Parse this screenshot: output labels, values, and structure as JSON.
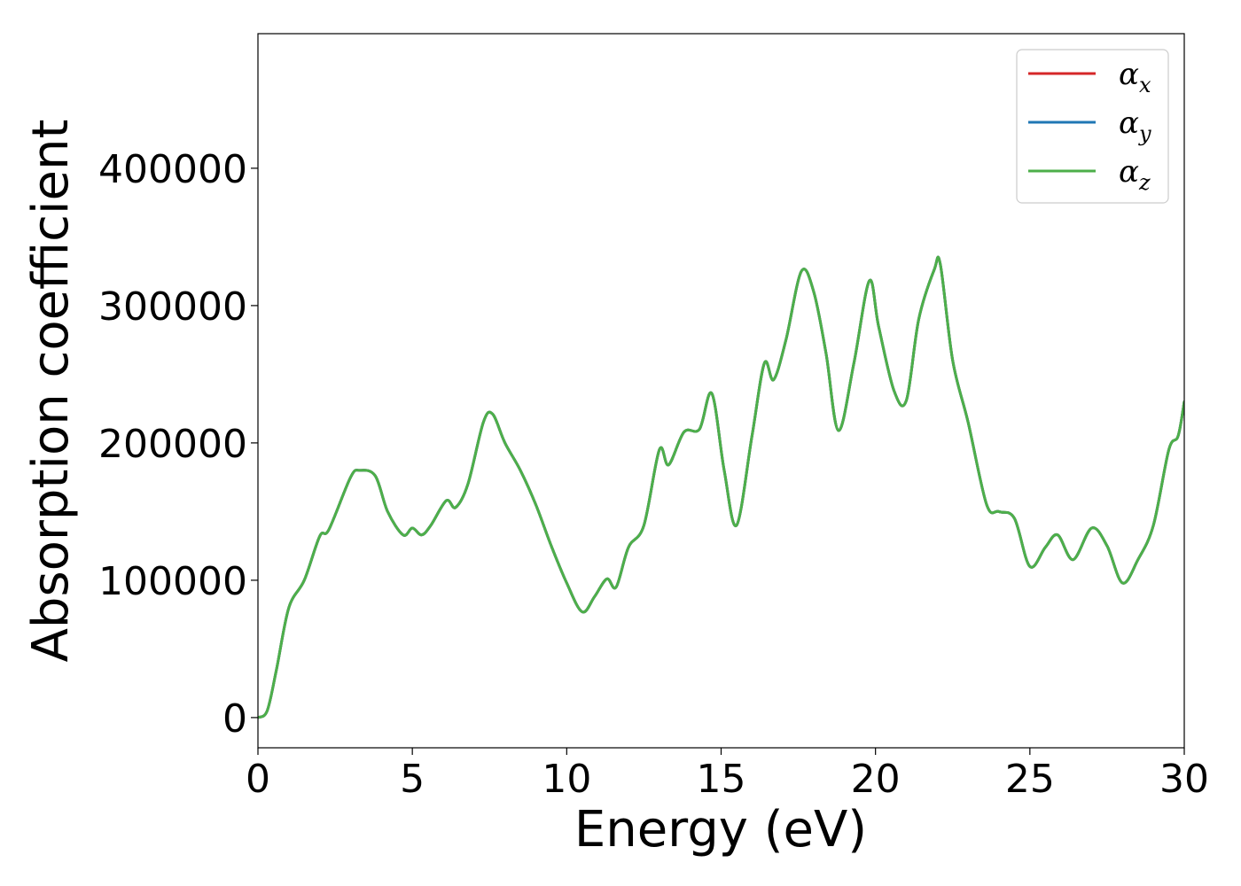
{
  "chart_data": {
    "type": "line",
    "title": "",
    "xlabel": "Energy (eV)",
    "ylabel": "Absorption coefficient",
    "xlim": [
      0,
      30
    ],
    "ylim": [
      -22000,
      498000
    ],
    "xticks": [
      0,
      5,
      10,
      15,
      20,
      25,
      30
    ],
    "yticks": [
      0,
      100000,
      200000,
      300000,
      400000
    ],
    "xtick_labels": [
      "0",
      "5",
      "10",
      "15",
      "20",
      "25",
      "30"
    ],
    "ytick_labels": [
      "0",
      "100000",
      "200000",
      "300000",
      "400000"
    ],
    "grid": false,
    "legend_position": "top-right",
    "x": [
      0,
      0.3,
      0.6,
      1.0,
      1.5,
      2.0,
      2.3,
      3.0,
      3.3,
      3.8,
      4.2,
      4.7,
      5.0,
      5.3,
      5.6,
      6.1,
      6.4,
      6.8,
      7.3,
      7.6,
      8.0,
      8.5,
      9.0,
      9.5,
      10.0,
      10.5,
      10.9,
      11.3,
      11.6,
      12.0,
      12.5,
      13.0,
      13.3,
      13.8,
      14.3,
      14.7,
      15.1,
      15.5,
      16.0,
      16.4,
      16.7,
      17.1,
      17.6,
      18.0,
      18.4,
      18.8,
      19.3,
      19.8,
      20.1,
      20.6,
      21.0,
      21.4,
      21.9,
      22.1,
      22.5,
      23.0,
      23.6,
      24.0,
      24.5,
      25.0,
      25.5,
      25.9,
      26.4,
      27.0,
      27.5,
      28.0,
      28.5,
      29.0,
      29.5,
      29.8,
      30.0
    ],
    "series": [
      {
        "name": "α_x",
        "color": "#d62728",
        "values": [
          0,
          5000,
          35000,
          80000,
          100000,
          132000,
          137000,
          175000,
          180000,
          176000,
          150000,
          133000,
          138000,
          133000,
          140000,
          158000,
          153000,
          170000,
          215000,
          221000,
          200000,
          180000,
          155000,
          125000,
          98000,
          77000,
          88000,
          101000,
          95000,
          124000,
          140000,
          195000,
          184000,
          208000,
          210000,
          236000,
          180000,
          140000,
          205000,
          258000,
          246000,
          275000,
          325000,
          310000,
          265000,
          209000,
          258000,
          318000,
          285000,
          238000,
          231000,
          290000,
          326000,
          330000,
          260000,
          215000,
          155000,
          150000,
          145000,
          110000,
          124000,
          133000,
          115000,
          138000,
          125000,
          98000,
          115000,
          140000,
          195000,
          205000,
          230000
        ]
      },
      {
        "name": "α_y",
        "color": "#1f77b4",
        "values": [
          0,
          5000,
          35000,
          80000,
          100000,
          132000,
          137000,
          175000,
          180000,
          176000,
          150000,
          133000,
          138000,
          133000,
          140000,
          158000,
          153000,
          170000,
          215000,
          221000,
          200000,
          180000,
          155000,
          125000,
          98000,
          77000,
          88000,
          101000,
          95000,
          124000,
          140000,
          195000,
          184000,
          208000,
          210000,
          236000,
          180000,
          140000,
          205000,
          258000,
          246000,
          275000,
          325000,
          310000,
          265000,
          209000,
          258000,
          318000,
          285000,
          238000,
          231000,
          290000,
          326000,
          330000,
          260000,
          215000,
          155000,
          150000,
          145000,
          110000,
          124000,
          133000,
          115000,
          138000,
          125000,
          98000,
          115000,
          140000,
          195000,
          205000,
          230000
        ]
      },
      {
        "name": "α_z",
        "color": "#4daf4a",
        "values": [
          0,
          5000,
          35000,
          80000,
          100000,
          132000,
          137000,
          175000,
          180000,
          176000,
          150000,
          133000,
          138000,
          133000,
          140000,
          158000,
          153000,
          170000,
          215000,
          221000,
          200000,
          180000,
          155000,
          125000,
          98000,
          77000,
          88000,
          101000,
          95000,
          124000,
          140000,
          195000,
          184000,
          208000,
          210000,
          236000,
          180000,
          140000,
          205000,
          258000,
          246000,
          275000,
          325000,
          310000,
          265000,
          209000,
          258000,
          318000,
          285000,
          238000,
          231000,
          290000,
          326000,
          330000,
          260000,
          215000,
          155000,
          150000,
          145000,
          110000,
          124000,
          133000,
          115000,
          138000,
          125000,
          98000,
          115000,
          140000,
          195000,
          205000,
          230000
        ]
      }
    ],
    "legend": [
      {
        "symbol": "α",
        "sub": "x",
        "color": "#d62728"
      },
      {
        "symbol": "α",
        "sub": "y",
        "color": "#1f77b4"
      },
      {
        "symbol": "α",
        "sub": "z",
        "color": "#4daf4a"
      }
    ]
  }
}
